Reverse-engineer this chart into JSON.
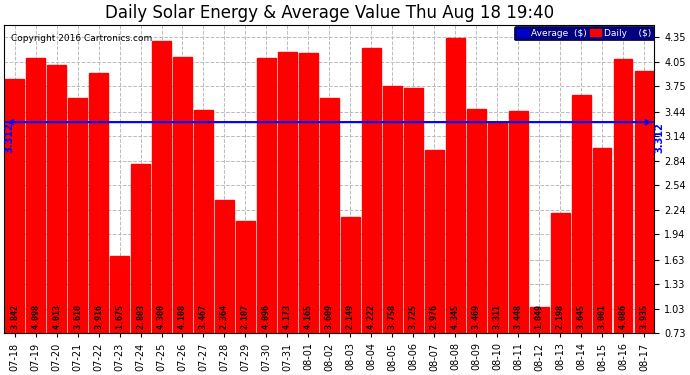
{
  "title": "Daily Solar Energy & Average Value Thu Aug 18 19:40",
  "copyright": "Copyright 2016 Cartronics.com",
  "categories": [
    "07-18",
    "07-19",
    "07-20",
    "07-21",
    "07-22",
    "07-23",
    "07-24",
    "07-25",
    "07-26",
    "07-27",
    "07-28",
    "07-29",
    "07-30",
    "07-31",
    "08-01",
    "08-02",
    "08-03",
    "08-04",
    "08-05",
    "08-06",
    "08-07",
    "08-08",
    "08-09",
    "08-10",
    "08-11",
    "08-12",
    "08-13",
    "08-14",
    "08-15",
    "08-16",
    "08-17"
  ],
  "values": [
    3.842,
    4.098,
    4.013,
    3.61,
    3.916,
    1.675,
    2.803,
    4.3,
    4.108,
    3.467,
    2.364,
    2.107,
    4.096,
    4.173,
    4.165,
    3.609,
    2.149,
    4.222,
    3.758,
    3.725,
    2.976,
    4.345,
    3.469,
    3.311,
    3.448,
    1.049,
    2.198,
    3.645,
    3.001,
    4.086,
    3.935
  ],
  "average": 3.312,
  "bar_color": "#FF0000",
  "avg_line_color": "#0000FF",
  "background_color": "#FFFFFF",
  "plot_bg_color": "#FFFFFF",
  "grid_color": "#BBBBBB",
  "ylim_min": 0.73,
  "ylim_max": 4.5,
  "yticks": [
    0.73,
    1.03,
    1.33,
    1.63,
    1.94,
    2.24,
    2.54,
    2.84,
    3.14,
    3.44,
    3.75,
    4.05,
    4.35
  ],
  "avg_label": "3.312",
  "legend_avg_color": "#0000CD",
  "legend_daily_color": "#FF0000",
  "title_fontsize": 12,
  "tick_fontsize": 7,
  "bar_value_fontsize": 6
}
